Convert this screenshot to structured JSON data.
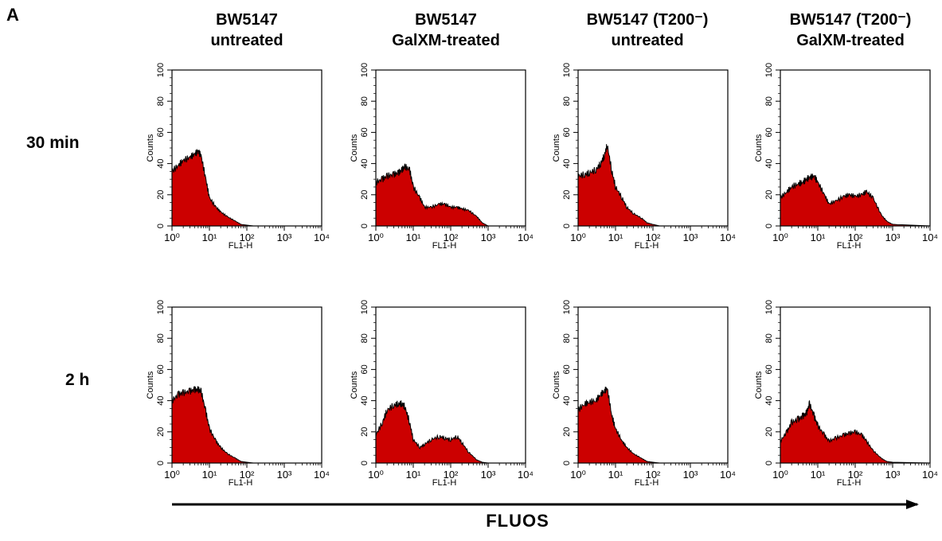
{
  "panel_letter": "A",
  "columns": [
    {
      "line1": "BW5147",
      "line2": "untreated"
    },
    {
      "line1": "BW5147",
      "line2": "GalXM-treated"
    },
    {
      "line1": "BW5147 (T200⁻)",
      "line2": "untreated"
    },
    {
      "line1": "BW5147 (T200⁻)",
      "line2": "GalXM-treated"
    }
  ],
  "rows": [
    "30 min",
    "2 h"
  ],
  "axis": {
    "xlabel": "FL1-H",
    "ylabel": "Counts",
    "x_ticks": [
      "10⁰",
      "10¹",
      "10²",
      "10³",
      "10⁴"
    ],
    "y_ticks": [
      "0",
      "20",
      "40",
      "60",
      "80",
      "100"
    ]
  },
  "arrow_label": "FLUOS",
  "colors": {
    "fill": "#cc0000",
    "outline": "#000000"
  },
  "chart_data": {
    "type": "area",
    "scale_x": "log",
    "xlim": [
      1,
      10000
    ],
    "ylim": [
      0,
      100
    ],
    "xlabel": "FL1-H",
    "ylabel": "Counts",
    "x": [
      1,
      1.5,
      2,
      3,
      4,
      5,
      6,
      8,
      10,
      15,
      20,
      30,
      50,
      70,
      100,
      150,
      200,
      300,
      500,
      700,
      1000,
      10000
    ],
    "panels": [
      {
        "row": "30 min",
        "column": "BW5147 untreated",
        "values": [
          35,
          39,
          42,
          44,
          46,
          48,
          45,
          30,
          18,
          12,
          9,
          6,
          3,
          1,
          0.5,
          0,
          0,
          0,
          0,
          0,
          0,
          0
        ]
      },
      {
        "row": "30 min",
        "column": "BW5147 GalXM-treated",
        "values": [
          28,
          30,
          32,
          33,
          34,
          36,
          38,
          36,
          25,
          18,
          12,
          12,
          14,
          14,
          12,
          12,
          11,
          10,
          6,
          2,
          0,
          0
        ]
      },
      {
        "row": "30 min",
        "column": "BW5147 (T200⁻) untreated",
        "values": [
          32,
          33,
          34,
          36,
          40,
          45,
          52,
          35,
          25,
          18,
          12,
          8,
          5,
          2,
          1,
          0,
          0,
          0,
          0,
          0,
          0,
          0
        ]
      },
      {
        "row": "30 min",
        "column": "BW5147 (T200⁻) GalXM-treated",
        "values": [
          18,
          22,
          25,
          27,
          28,
          30,
          31,
          32,
          28,
          20,
          14,
          16,
          19,
          20,
          19,
          20,
          22,
          18,
          7,
          3,
          1,
          0
        ]
      },
      {
        "row": "2 h",
        "column": "BW5147 untreated",
        "values": [
          40,
          44,
          45,
          46,
          47,
          47,
          46,
          33,
          22,
          14,
          10,
          6,
          3,
          1,
          0.5,
          0,
          0,
          0,
          0,
          0,
          0,
          0
        ]
      },
      {
        "row": "2 h",
        "column": "BW5147 GalXM-treated",
        "values": [
          18,
          26,
          34,
          37,
          38,
          38,
          36,
          26,
          15,
          10,
          12,
          15,
          17,
          16,
          15,
          17,
          13,
          7,
          2,
          0.5,
          0,
          0
        ]
      },
      {
        "row": "2 h",
        "column": "BW5147 (T200⁻) untreated",
        "values": [
          34,
          38,
          39,
          40,
          44,
          46,
          48,
          30,
          22,
          14,
          10,
          6,
          3,
          1,
          0.5,
          0,
          0,
          0,
          0,
          0,
          0,
          0
        ]
      },
      {
        "row": "2 h",
        "column": "BW5147 (T200⁻) GalXM-treated",
        "values": [
          14,
          20,
          26,
          28,
          30,
          32,
          38,
          30,
          24,
          18,
          14,
          16,
          18,
          19,
          20,
          18,
          14,
          8,
          3,
          1,
          0.5,
          0
        ]
      }
    ]
  }
}
